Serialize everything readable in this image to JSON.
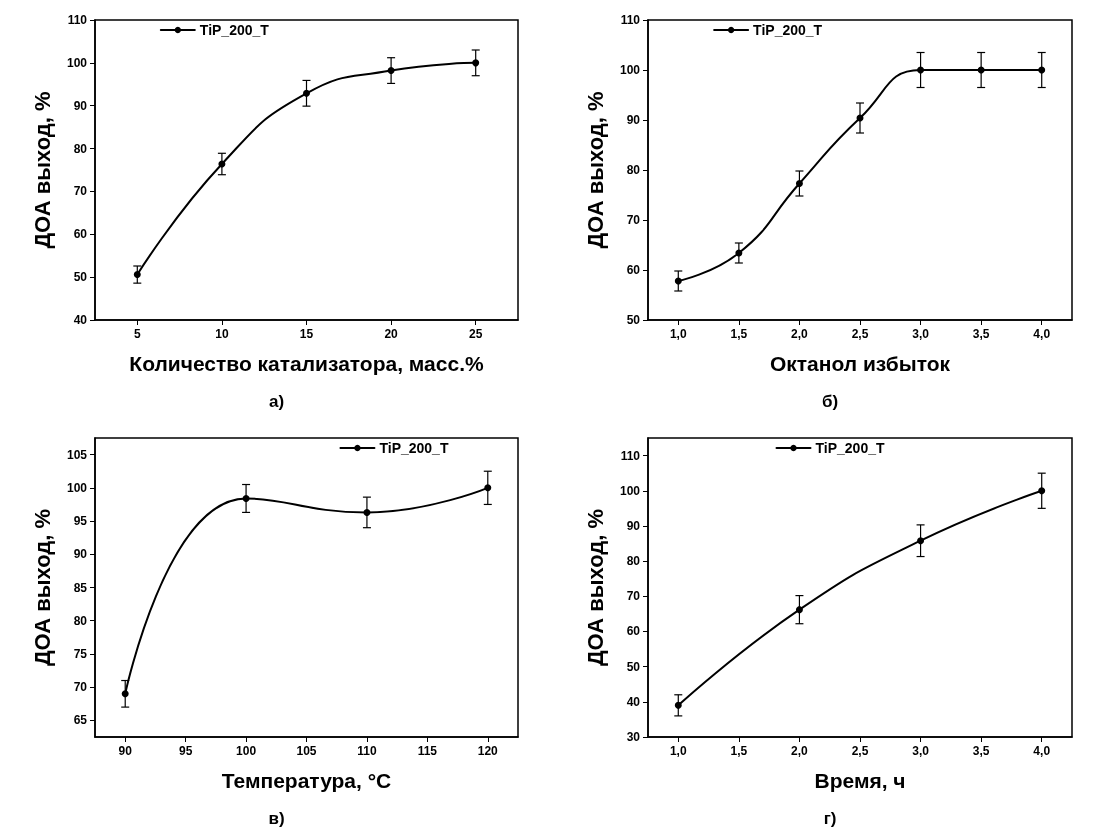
{
  "chart_data": [
    {
      "type": "line",
      "xlabel": "Количество катализатора, масс.%",
      "ylabel": "ДОА выход, %",
      "annotations": [
        "а)"
      ],
      "x": [
        5,
        10,
        15,
        20,
        25
      ],
      "xlim": [
        2.5,
        27.5
      ],
      "xticks": [
        5,
        10,
        15,
        20,
        25
      ],
      "ylim": [
        40,
        110
      ],
      "yticks": [
        40,
        50,
        60,
        70,
        80,
        90,
        100,
        110
      ],
      "series": [
        {
          "name": "TiP_200_T",
          "color": "#000000",
          "values": [
            50.6,
            76.4,
            92.9,
            98.2,
            100
          ],
          "errors": [
            2,
            2.5,
            3,
            3,
            3
          ]
        }
      ],
      "marker": "circle",
      "line_style": "solid",
      "legend": "top left",
      "grid": false
    },
    {
      "type": "line",
      "xlabel": "Октанол избыток",
      "ylabel": "ДОА выход, %",
      "annotations": [
        "б)"
      ],
      "x": [
        1,
        1.5,
        2,
        2.5,
        3,
        3.5,
        4
      ],
      "xlim": [
        0.75,
        4.25
      ],
      "xticks": [
        {
          "value": 1,
          "label": "1,0"
        },
        {
          "value": 1.5,
          "label": "1,5"
        },
        {
          "value": 2,
          "label": "2,0"
        },
        {
          "value": 2.5,
          "label": "2,5"
        },
        {
          "value": 3,
          "label": "3,0"
        },
        {
          "value": 3.5,
          "label": "3,5"
        },
        {
          "value": 4,
          "label": "4,0"
        }
      ],
      "ylim": [
        50,
        110
      ],
      "yticks": [
        50,
        60,
        70,
        80,
        90,
        100,
        110
      ],
      "series": [
        {
          "name": "TiP_200_T",
          "color": "#000000",
          "values": [
            57.8,
            63.4,
            77.3,
            90.4,
            100,
            100,
            100
          ],
          "errors": [
            2,
            2,
            2.5,
            3,
            3.5,
            3.5,
            3.5
          ]
        }
      ],
      "marker": "circle",
      "line_style": "solid",
      "legend": "top left",
      "grid": false
    },
    {
      "type": "line",
      "xlabel": "Температура, °C",
      "ylabel": "ДОА выход, %",
      "annotations": [
        "в)"
      ],
      "x": [
        90,
        100,
        110,
        120
      ],
      "xlim": [
        87.5,
        122.5
      ],
      "xticks": [
        90,
        95,
        100,
        105,
        110,
        115,
        120
      ],
      "ylim": [
        62.5,
        107.5
      ],
      "yticks": [
        65,
        70,
        75,
        80,
        85,
        90,
        95,
        100,
        105
      ],
      "series": [
        {
          "name": "TiP_200_T",
          "color": "#000000",
          "values": [
            69,
            98.4,
            96.3,
            100
          ],
          "errors": [
            2,
            2.1,
            2.3,
            2.5
          ]
        }
      ],
      "marker": "circle",
      "line_style": "solid",
      "legend": "top right",
      "grid": false
    },
    {
      "type": "line",
      "xlabel": "Время, ч",
      "ylabel": "ДОА выход, %",
      "annotations": [
        "г)"
      ],
      "x": [
        1,
        2,
        3,
        4
      ],
      "xlim": [
        0.75,
        4.25
      ],
      "xticks": [
        {
          "value": 1,
          "label": "1,0"
        },
        {
          "value": 1.5,
          "label": "1,5"
        },
        {
          "value": 2,
          "label": "2,0"
        },
        {
          "value": 2.5,
          "label": "2,5"
        },
        {
          "value": 3,
          "label": "3,0"
        },
        {
          "value": 3.5,
          "label": "3,5"
        },
        {
          "value": 4,
          "label": "4,0"
        }
      ],
      "ylim": [
        30,
        115
      ],
      "yticks": [
        30,
        40,
        50,
        60,
        70,
        80,
        90,
        100,
        110
      ],
      "series": [
        {
          "name": "TiP_200_T",
          "color": "#000000",
          "values": [
            39,
            66.2,
            85.8,
            100
          ],
          "errors": [
            3,
            4,
            4.5,
            5
          ]
        }
      ],
      "marker": "circle",
      "line_style": "solid",
      "legend": "top",
      "grid": false
    }
  ]
}
